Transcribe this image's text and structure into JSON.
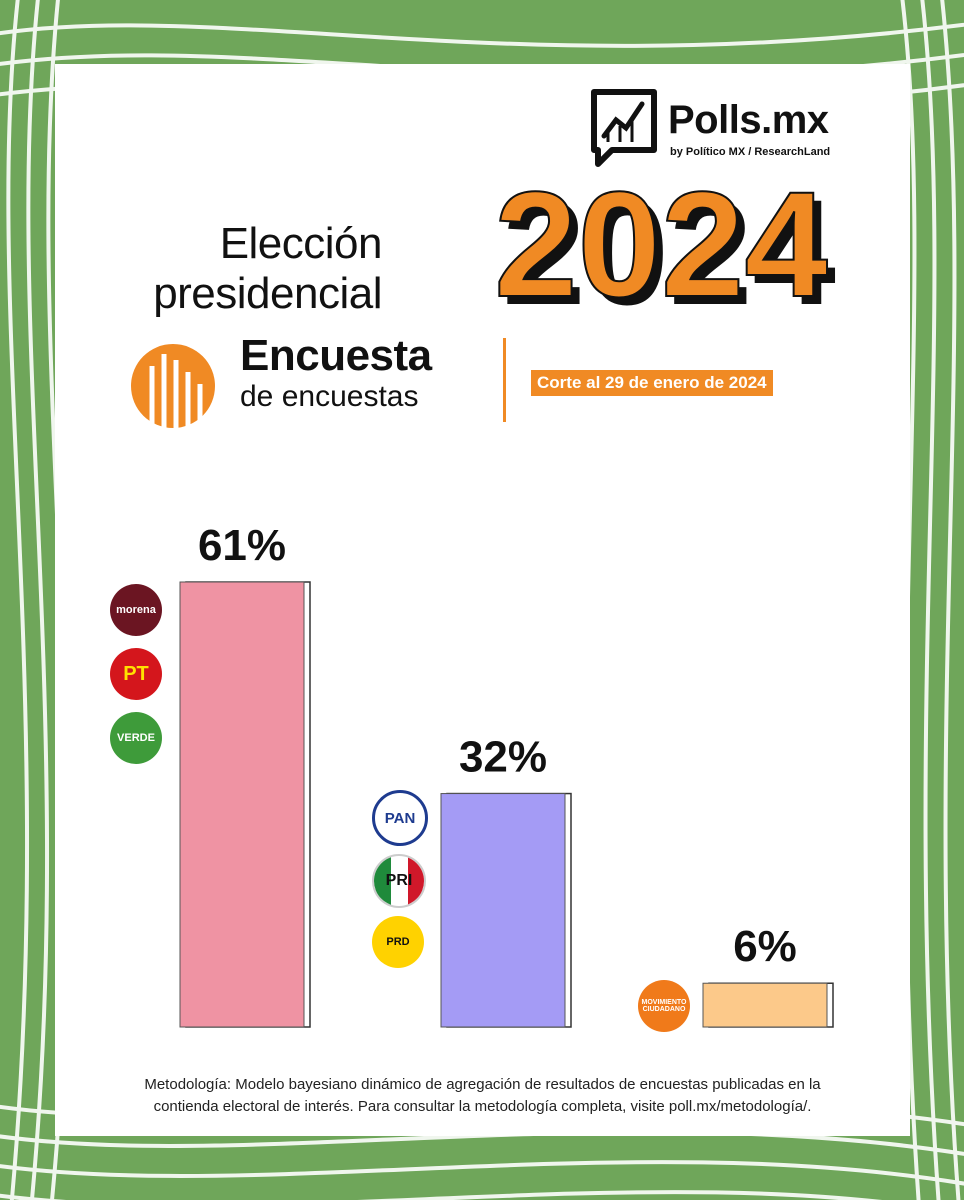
{
  "brand": {
    "name": "Polls.mx",
    "byline": "by Político MX / ResearchLand",
    "logo_icon": "chart-frame-icon"
  },
  "header": {
    "title_line1": "Elección",
    "title_line2": "presidencial",
    "year": "2024",
    "survey_title": "Encuesta",
    "survey_subtitle": "de encuestas",
    "cutoff": "Corte al 29 de enero de 2024"
  },
  "colors": {
    "background_green": "#6fa65a",
    "accent_orange": "#f08a24",
    "bar_pink": "#ef93a3",
    "bar_purple": "#a49bf5",
    "bar_peach": "#fcc98a"
  },
  "chart_data": {
    "type": "bar",
    "categories": [
      "Morena · PT · Verde",
      "PAN · PRI · PRD",
      "Movimiento Ciudadano"
    ],
    "values": [
      61,
      32,
      6
    ],
    "value_labels": [
      "61%",
      "32%",
      "6%"
    ],
    "ylim": [
      0,
      61
    ],
    "grid": false,
    "legend": "none"
  },
  "party_logos": {
    "morena": "morena",
    "pt": "PT",
    "verde": "VERDE",
    "pan": "PAN",
    "pri": "PRI",
    "prd": "PRD",
    "mc": "MOVIMIENTO CIUDADANO"
  },
  "footer": {
    "methodology_line1": "Metodología: Modelo bayesiano dinámico de agregación de resultados de encuestas publicadas en la",
    "methodology_line2": "contienda electoral de interés. Para consultar la metodología completa, visite poll.mx/metodología/."
  }
}
